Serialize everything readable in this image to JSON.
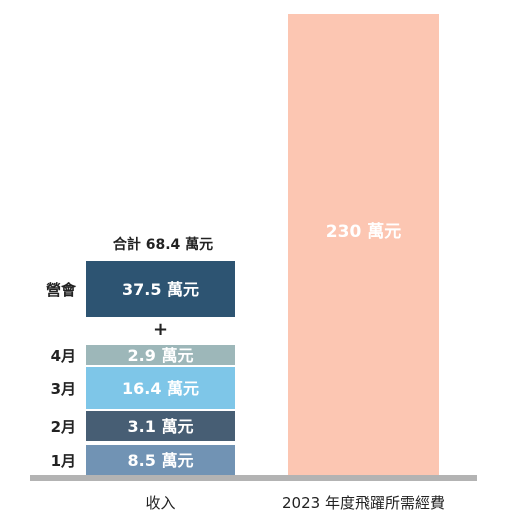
{
  "chart_data": {
    "type": "bar",
    "stacked": true,
    "categories": [
      "收入",
      "2023 年度飛躍所需經費"
    ],
    "unit": "萬元",
    "total_label": "合計 68.4 萬元",
    "plus_sign": "+",
    "income_segments": [
      {
        "name": "1月",
        "value": 8.5,
        "label": "8.5 萬元",
        "color": "#7193b4"
      },
      {
        "name": "2月",
        "value": 3.1,
        "label": "3.1 萬元",
        "color": "#475e74"
      },
      {
        "name": "3月",
        "value": 16.4,
        "label": "16.4 萬元",
        "color": "#7ec6e8"
      },
      {
        "name": "4月",
        "value": 2.9,
        "label": "2.9 萬元",
        "color": "#9db7b9"
      },
      {
        "name": "營會",
        "value": 37.5,
        "label": "37.5 萬元",
        "color": "#2d5472"
      }
    ],
    "need": {
      "value": 230,
      "label": "230 萬元",
      "color": "#fcc6b2"
    },
    "axis_color": "#b3b3b3"
  }
}
